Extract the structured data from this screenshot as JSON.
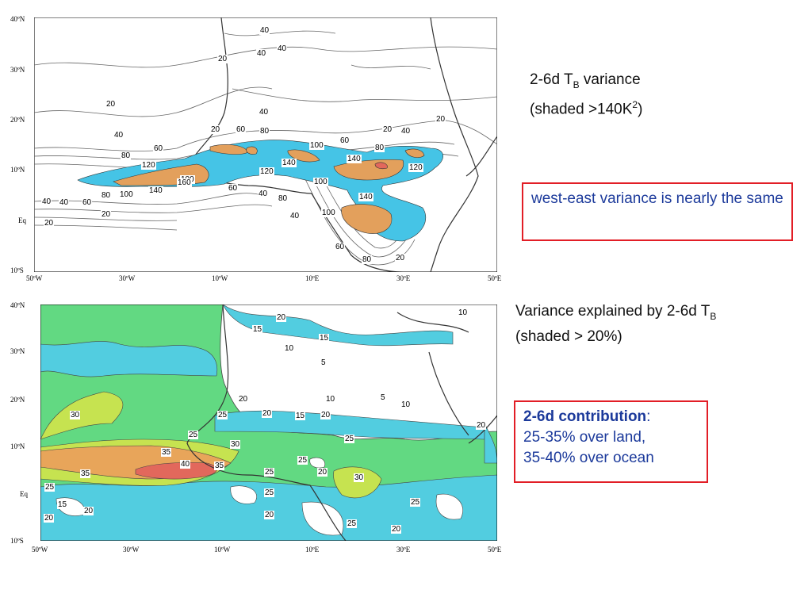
{
  "top_panel": {
    "title_line1_prefix": "2-6d T",
    "title_line1_sub": "B",
    "title_line1_suffix": " variance",
    "title_line2_prefix": "(shaded >140K",
    "title_line2_sup": "2",
    "title_line2_suffix": ")",
    "callout": "west-east variance is nearly the same",
    "lat_labels": [
      "40ºN",
      "30ºN",
      "20ºN",
      "10ºN",
      "Eq",
      "10ºS"
    ],
    "lon_labels": [
      "50ºW",
      "30ºW",
      "10ºW",
      "10ºE",
      "30ºE",
      "50ºE"
    ],
    "contour_labels": [
      "40",
      "40",
      "40",
      "20",
      "20",
      "40",
      "40",
      "20",
      "80",
      "60",
      "120",
      "100",
      "60",
      "80",
      "100",
      "60",
      "20",
      "40",
      "100",
      "80",
      "140",
      "140",
      "120",
      "160",
      "140",
      "120",
      "60",
      "100",
      "40",
      "80",
      "40",
      "100",
      "140",
      "100",
      "60",
      "80",
      "20",
      "40",
      "40",
      "60",
      "80",
      "100",
      "20",
      "20",
      "20"
    ],
    "colors": {
      "light_shade": "#45c4e6",
      "dark_shade": "#e3a05c",
      "peak_shade": "#e2685c",
      "contour": "#555555",
      "coast": "#333333"
    }
  },
  "bottom_panel": {
    "title_line1_prefix": "Variance explained by 2-6d T",
    "title_line1_sub": "B",
    "title_line2": "(shaded > 20%)",
    "callout_bold": "2-6d contribution",
    "callout_colon": ":",
    "callout_line2": "25-35% over land,",
    "callout_line3": "35-40% over ocean",
    "lat_labels": [
      "40ºN",
      "30ºN",
      "20ºN",
      "10ºN",
      "Eq",
      "10ºS"
    ],
    "lon_labels": [
      "50ºW",
      "30ºW",
      "10ºW",
      "10ºE",
      "30ºE",
      "50ºE"
    ],
    "contour_labels": [
      "20",
      "15",
      "10",
      "15",
      "10",
      "5",
      "10",
      "5",
      "10",
      "30",
      "20",
      "20",
      "15",
      "20",
      "25",
      "20",
      "25",
      "25",
      "30",
      "35",
      "40",
      "35",
      "35",
      "25",
      "25",
      "25",
      "20",
      "30",
      "25",
      "15",
      "20",
      "20",
      "20",
      "25",
      "20",
      "25"
    ],
    "colors": {
      "c20_25": "#52cde0",
      "c25_30": "#62d982",
      "c30_35": "#c6e350",
      "c35_40": "#e8a55a",
      "c40": "#e2685c",
      "contour": "#555555"
    }
  }
}
